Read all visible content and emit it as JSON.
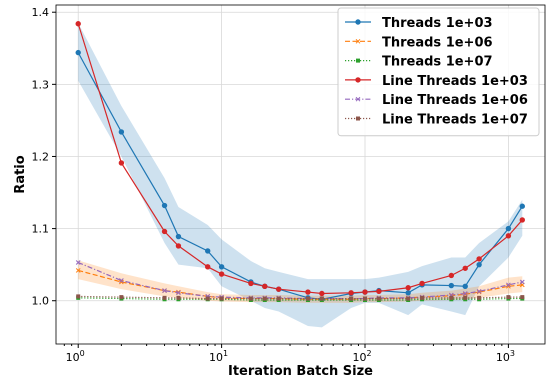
{
  "chart_data": {
    "type": "line",
    "title": "",
    "xlabel": "Iteration Batch Size",
    "ylabel": "Ratio",
    "xscale": "log",
    "xlim": [
      0.7,
      1800
    ],
    "ylim": [
      0.94,
      1.41
    ],
    "x_ticks": [
      {
        "value": 1,
        "base": "10",
        "exp": "0"
      },
      {
        "value": 10,
        "base": "10",
        "exp": "1"
      },
      {
        "value": 100,
        "base": "10",
        "exp": "2"
      },
      {
        "value": 1000,
        "base": "10",
        "exp": "3"
      }
    ],
    "y_ticks": [
      {
        "value": 1.0,
        "label": "1.0"
      },
      {
        "value": 1.1,
        "label": "1.1"
      },
      {
        "value": 1.2,
        "label": "1.2"
      },
      {
        "value": 1.3,
        "label": "1.3"
      },
      {
        "value": 1.4,
        "label": "1.4"
      }
    ],
    "grid": true,
    "legend_position": "top-right",
    "x": [
      1,
      2,
      4,
      5,
      8,
      10,
      16,
      20,
      25,
      40,
      50,
      80,
      100,
      125,
      200,
      250,
      400,
      500,
      625,
      1000,
      1250
    ],
    "series": [
      {
        "name": "Threads 1e+03",
        "color": "#1f77b4",
        "linestyle": "solid",
        "marker": "circle",
        "values": [
          1.344,
          1.234,
          1.132,
          1.089,
          1.069,
          1.047,
          1.026,
          1.02,
          1.016,
          1.004,
          1.002,
          1.01,
          1.012,
          1.014,
          1.011,
          1.022,
          1.021,
          1.02,
          1.05,
          1.1,
          1.131
        ],
        "band_lower": [
          1.305,
          1.2,
          1.08,
          1.05,
          1.045,
          1.02,
          1.0,
          0.99,
          0.985,
          0.965,
          0.963,
          0.99,
          0.997,
          0.997,
          0.98,
          0.995,
          0.985,
          0.98,
          1.02,
          1.06,
          1.09
        ],
        "band_upper": [
          1.385,
          1.27,
          1.17,
          1.13,
          1.105,
          1.085,
          1.055,
          1.045,
          1.04,
          1.03,
          1.03,
          1.03,
          1.03,
          1.032,
          1.04,
          1.048,
          1.06,
          1.06,
          1.08,
          1.11,
          1.14
        ]
      },
      {
        "name": "Threads 1e+06",
        "color": "#ff7f0e",
        "linestyle": "dashed",
        "marker": "x",
        "values": [
          1.042,
          1.026,
          1.014,
          1.012,
          1.006,
          1.004,
          1.003,
          1.003,
          1.003,
          1.002,
          1.002,
          1.002,
          1.003,
          1.003,
          1.004,
          1.005,
          1.007,
          1.009,
          1.012,
          1.02,
          1.022
        ],
        "band_lower": [
          1.03,
          1.016,
          1.006,
          1.004,
          1.0,
          0.999,
          0.998,
          0.998,
          0.998,
          0.997,
          0.997,
          0.997,
          0.998,
          0.998,
          0.999,
          1.0,
          1.001,
          1.002,
          1.004,
          1.01,
          1.012
        ],
        "band_upper": [
          1.056,
          1.038,
          1.024,
          1.02,
          1.012,
          1.009,
          1.008,
          1.008,
          1.008,
          1.007,
          1.007,
          1.007,
          1.008,
          1.008,
          1.009,
          1.011,
          1.014,
          1.017,
          1.02,
          1.032,
          1.034
        ]
      },
      {
        "name": "Threads 1e+07",
        "color": "#2ca02c",
        "linestyle": "dotted",
        "marker": "square",
        "values": [
          1.004,
          1.003,
          1.002,
          1.002,
          1.002,
          1.002,
          1.001,
          1.001,
          1.001,
          1.001,
          1.001,
          1.001,
          1.001,
          1.001,
          1.001,
          1.002,
          1.002,
          1.002,
          1.002,
          1.003,
          1.003
        ]
      },
      {
        "name": "Line Threads 1e+03",
        "color": "#d62728",
        "linestyle": "solid",
        "marker": "circle",
        "values": [
          1.384,
          1.191,
          1.096,
          1.076,
          1.047,
          1.037,
          1.024,
          1.02,
          1.016,
          1.012,
          1.01,
          1.011,
          1.012,
          1.013,
          1.018,
          1.024,
          1.035,
          1.045,
          1.058,
          1.09,
          1.112
        ]
      },
      {
        "name": "Line Threads 1e+06",
        "color": "#9467bd",
        "linestyle": "dashdot",
        "marker": "x",
        "values": [
          1.053,
          1.028,
          1.014,
          1.011,
          1.006,
          1.005,
          1.004,
          1.004,
          1.004,
          1.003,
          1.003,
          1.003,
          1.003,
          1.004,
          1.004,
          1.005,
          1.008,
          1.01,
          1.013,
          1.022,
          1.026
        ]
      },
      {
        "name": "Line Threads 1e+07",
        "color": "#8c564b",
        "linestyle": "dotted",
        "marker": "square",
        "values": [
          1.006,
          1.005,
          1.004,
          1.004,
          1.003,
          1.003,
          1.003,
          1.003,
          1.003,
          1.003,
          1.003,
          1.003,
          1.003,
          1.003,
          1.003,
          1.004,
          1.004,
          1.004,
          1.004,
          1.005,
          1.005
        ]
      }
    ]
  }
}
